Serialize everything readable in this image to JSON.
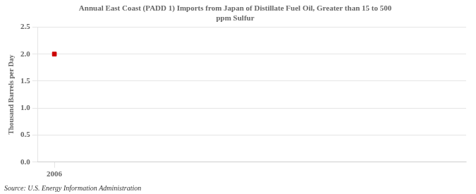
{
  "chart_data": {
    "type": "scatter",
    "title": "Annual East Coast (PADD 1) Imports from Japan of Distillate Fuel Oil, Greater than 15 to 500\nppm Sulfur",
    "y_label": "Thousand Barrels per Day",
    "annotation": "Source: U.S. Energy Information Administration",
    "x": [
      2006
    ],
    "values": [
      2.0
    ],
    "color": "#cc0000",
    "marker": "square",
    "xlim": [
      2005.6,
      2016
    ],
    "xticks": [
      2006
    ],
    "ylim": [
      0,
      2.5
    ],
    "yticks": [
      {
        "value": 0,
        "label": "0.0"
      },
      0.5,
      {
        "value": 1,
        "label": "1.0"
      },
      1.5,
      {
        "value": 2,
        "label": "2.0"
      },
      2.5
    ],
    "grid": "y"
  }
}
